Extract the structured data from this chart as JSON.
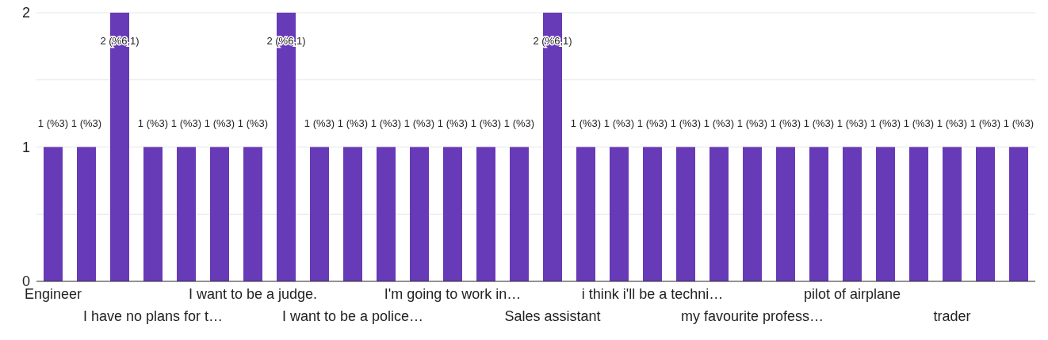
{
  "chart_data": {
    "type": "bar",
    "categories": [
      "Engineer",
      null,
      null,
      "I have no plans for t…",
      null,
      null,
      "I want to be a judge.",
      null,
      null,
      "I want to be a police…",
      null,
      null,
      "I'm going to work in…",
      null,
      null,
      "Sales assistant",
      null,
      null,
      "i think i'll be a techni…",
      null,
      null,
      "my favourite profess…",
      null,
      null,
      "pilot of airplane",
      null,
      null,
      "trader",
      null,
      null
    ],
    "values": [
      1,
      1,
      2,
      1,
      1,
      1,
      1,
      2,
      1,
      1,
      1,
      1,
      1,
      1,
      1,
      2,
      1,
      1,
      1,
      1,
      1,
      1,
      1,
      1,
      1,
      1,
      1,
      1,
      1,
      1
    ],
    "value_labels": [
      "1 (%3)",
      "1 (%3)",
      "2 (%6,1)",
      "1 (%3)",
      "1 (%3)",
      "1 (%3)",
      "1 (%3)",
      "2 (%6,1)",
      "1 (%3)",
      "1 (%3)",
      "1 (%3)",
      "1 (%3)",
      "1 (%3)",
      "1 (%3)",
      "1 (%3)",
      "2 (%6,1)",
      "1 (%3)",
      "1 (%3)",
      "1 (%3)",
      "1 (%3)",
      "1 (%3)",
      "1 (%3)",
      "1 (%3)",
      "1 (%3)",
      "1 (%3)",
      "1 (%3)",
      "1 (%3)",
      "1 (%3)",
      "1 (%3)",
      "1 (%3)"
    ],
    "color": "#673ab7",
    "ylim": [
      0,
      2
    ],
    "yticks": [
      0,
      {
        "value": 0.5,
        "label": null
      },
      1,
      {
        "value": 1.5,
        "label": null
      },
      2
    ],
    "grid": "y"
  }
}
